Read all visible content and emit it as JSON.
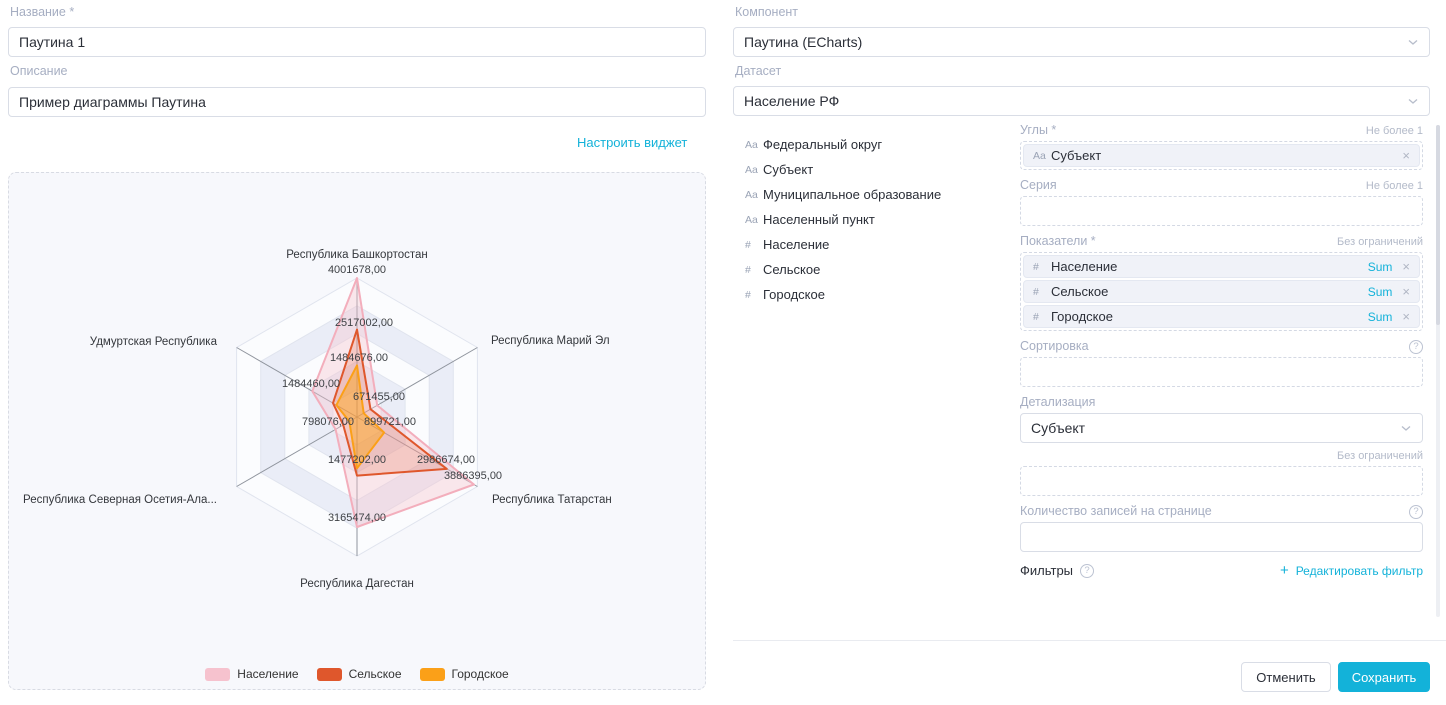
{
  "accent_color": "#13b2d9",
  "left": {
    "name_label": "Название *",
    "name_value": "Паутина 1",
    "description_label": "Описание",
    "description_value": "Пример диаграммы Паутина",
    "configure_link": "Настроить виджет"
  },
  "right": {
    "component_label": "Компонент",
    "component_value": "Паутина (ECharts)",
    "dataset_label": "Датасет",
    "dataset_value": "Население РФ",
    "fields": [
      {
        "icon": "Aa",
        "label": "Федеральный округ"
      },
      {
        "icon": "Aa",
        "label": "Субъект"
      },
      {
        "icon": "Aa",
        "label": "Муниципальное образование"
      },
      {
        "icon": "Aa",
        "label": "Населенный пункт"
      },
      {
        "icon": "#",
        "label": "Население"
      },
      {
        "icon": "#",
        "label": "Сельское"
      },
      {
        "icon": "#",
        "label": "Городское"
      }
    ],
    "config": {
      "angles_label": "Углы *",
      "angles_limit": "Не более 1",
      "angles_chip": {
        "icon": "Aa",
        "label": "Субъект"
      },
      "series_label": "Серия",
      "series_limit": "Не более 1",
      "indicators_label": "Показатели *",
      "indicators_limit": "Без ограничений",
      "indicator_chips": [
        {
          "icon": "#",
          "label": "Население",
          "agg": "Sum"
        },
        {
          "icon": "#",
          "label": "Сельское",
          "agg": "Sum"
        },
        {
          "icon": "#",
          "label": "Городское",
          "agg": "Sum"
        }
      ],
      "sorting_label": "Сортировка",
      "detail_label": "Детализация",
      "detail_value": "Субъект",
      "extra_limit": "Без ограничений",
      "page_size_label": "Количество записей на странице",
      "filters_label": "Фильтры",
      "edit_filter_link": "Редактировать фильтр"
    },
    "cancel_button": "Отменить",
    "save_button": "Сохранить"
  },
  "chart_data": {
    "type": "radar",
    "categories": [
      "Республика Башкортостан",
      "Республика Марий Эл",
      "Республика Татарстан",
      "Республика Дагестан",
      "Республика Северная Осетия-Алания",
      "Удмуртская Республика"
    ],
    "category_display": [
      "Республика Башкортостан",
      "Республика Марий Эл",
      "Республика Татарстан",
      "Республика Дагестан",
      "Республика Северная Осетия-Ала...",
      "Удмуртская Республика"
    ],
    "axis_max": 4001678,
    "ring_count": 5,
    "grid": true,
    "legend_position": "bottom",
    "series": [
      {
        "name": "Население",
        "color": "#f6c2ce",
        "line_color": "#f3aebc",
        "fill_opacity": 0.38,
        "values": [
          4001678,
          671455,
          3886395,
          3165474,
          712980,
          1484460
        ]
      },
      {
        "name": "Сельское",
        "color": "#df572c",
        "line_color": "#df572c",
        "fill_opacity": 0.2,
        "values": [
          2517002,
          450000,
          2986674,
          1688272,
          457581,
          798076
        ]
      },
      {
        "name": "Городское",
        "color": "#fba018",
        "line_color": "#fba018",
        "fill_opacity": 0.48,
        "values": [
          1484676,
          221455,
          899721,
          1477202,
          255399,
          686384
        ]
      }
    ],
    "value_labels": [
      "4001678,00",
      "2517002,00",
      "1484676,00",
      "1484460,00",
      "671455,00",
      "798076,00",
      "899721,00",
      "1477202,00",
      "2986674,00",
      "3886395,00",
      "3165474,00"
    ]
  }
}
